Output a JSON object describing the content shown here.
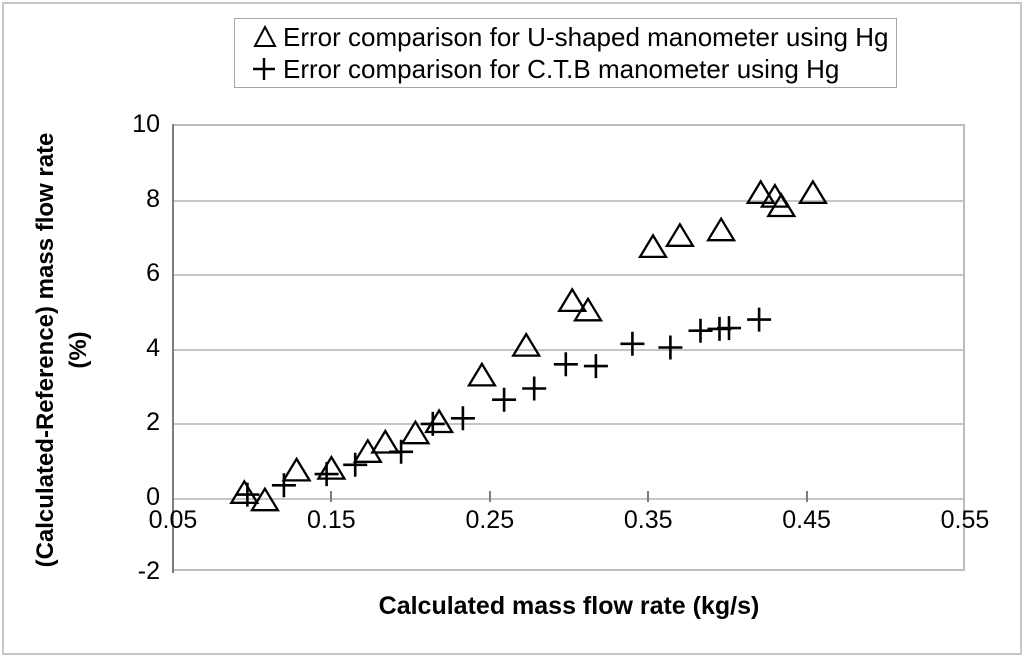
{
  "legend": {
    "items": [
      {
        "marker": "triangle",
        "label": "Error comparison for U-shaped manometer using Hg"
      },
      {
        "marker": "plus",
        "label": "Error comparison for C.T.B manometer using Hg"
      }
    ]
  },
  "axes": {
    "x_title": "Calculated mass flow rate (kg/s)",
    "y_title_line1": "(Calculated-Reference) mass flow rate",
    "y_title_line2": "(%)",
    "x_tick_labels": [
      "0.05",
      "0.15",
      "0.25",
      "0.35",
      "0.45",
      "0.55"
    ],
    "y_tick_labels": [
      "10",
      "8",
      "6",
      "4",
      "2",
      "0",
      "-2"
    ]
  },
  "colors": {
    "marker": "#000000",
    "gridline": "#c6c6c6",
    "axis_line": "#7d7d7d",
    "legend_border": "#a6a6a6",
    "text": "#000000"
  },
  "chart_data": {
    "type": "scatter",
    "title": "",
    "xlabel": "Calculated mass flow rate (kg/s)",
    "ylabel": "(Calculated-Reference) mass flow rate (%)",
    "xlim": [
      0.05,
      0.55
    ],
    "ylim": [
      -2,
      10
    ],
    "x_ticks": [
      0.05,
      0.15,
      0.25,
      0.35,
      0.45,
      0.55
    ],
    "y_ticks": [
      10,
      8,
      6,
      4,
      2,
      0,
      -2
    ],
    "grid": "horizontal",
    "legend_position": "top-center",
    "series": [
      {
        "name": "Error comparison for U-shaped manometer using Hg",
        "marker": "triangle",
        "points": [
          [
            0.095,
            0.1
          ],
          [
            0.108,
            -0.1
          ],
          [
            0.128,
            0.7
          ],
          [
            0.15,
            0.75
          ],
          [
            0.173,
            1.2
          ],
          [
            0.184,
            1.45
          ],
          [
            0.203,
            1.7
          ],
          [
            0.218,
            2.0
          ],
          [
            0.245,
            3.25
          ],
          [
            0.273,
            4.05
          ],
          [
            0.302,
            5.25
          ],
          [
            0.312,
            5.0
          ],
          [
            0.353,
            6.7
          ],
          [
            0.37,
            7.0
          ],
          [
            0.396,
            7.15
          ],
          [
            0.421,
            8.15
          ],
          [
            0.43,
            8.05
          ],
          [
            0.434,
            7.8
          ],
          [
            0.454,
            8.15
          ]
        ]
      },
      {
        "name": "Error comparison for C.T.B manometer using Hg",
        "marker": "plus",
        "points": [
          [
            0.097,
            0.05
          ],
          [
            0.12,
            0.3
          ],
          [
            0.147,
            0.6
          ],
          [
            0.165,
            0.85
          ],
          [
            0.194,
            1.2
          ],
          [
            0.214,
            1.95
          ],
          [
            0.233,
            2.1
          ],
          [
            0.259,
            2.6
          ],
          [
            0.278,
            2.9
          ],
          [
            0.298,
            3.55
          ],
          [
            0.317,
            3.5
          ],
          [
            0.34,
            4.1
          ],
          [
            0.364,
            4.0
          ],
          [
            0.383,
            4.45
          ],
          [
            0.395,
            4.5
          ],
          [
            0.401,
            4.52
          ],
          [
            0.42,
            4.75
          ]
        ]
      }
    ]
  }
}
